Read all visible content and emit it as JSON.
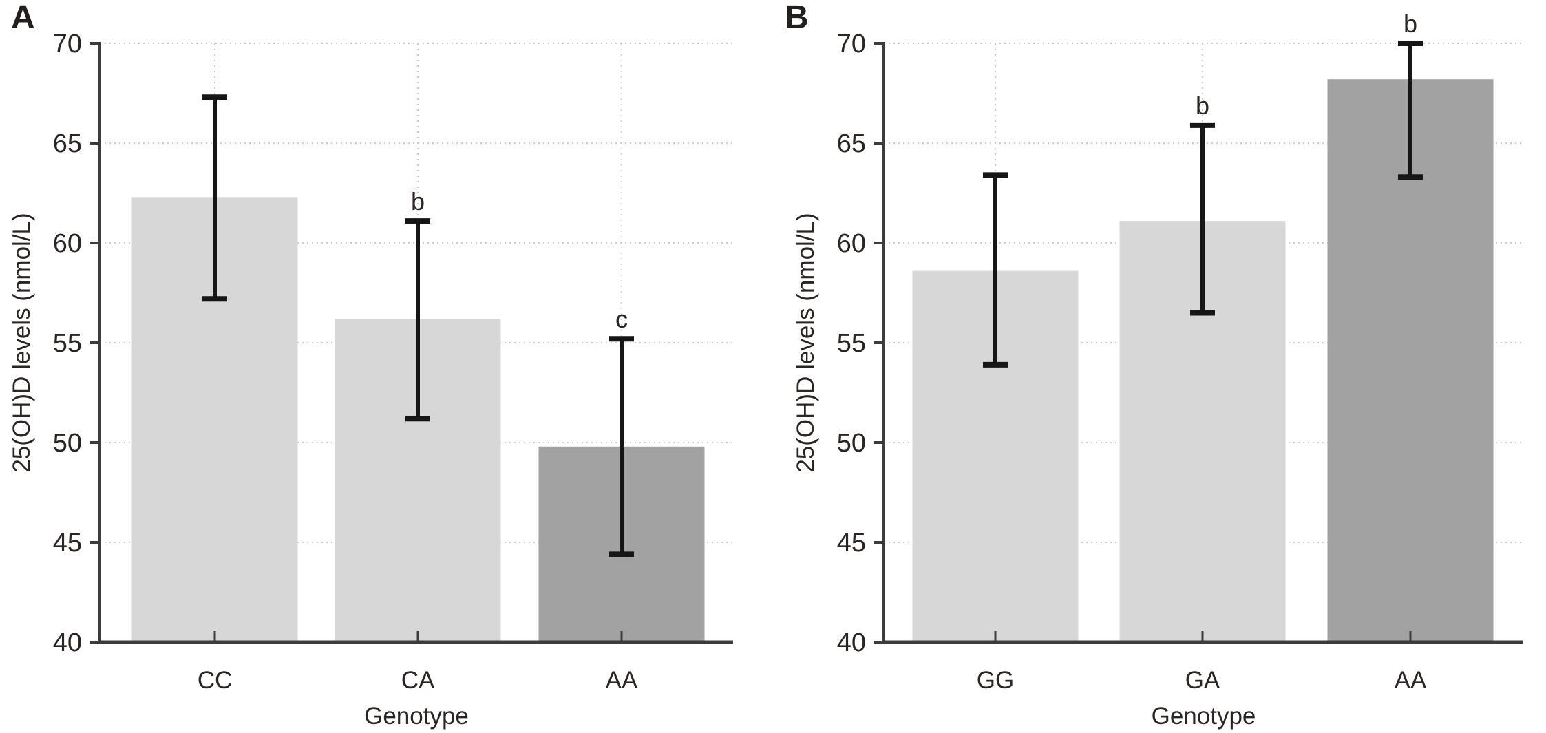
{
  "colors": {
    "background": "#ffffff",
    "axis": "#3c3c3c",
    "grid": "#cccccc",
    "error_bar": "#161616",
    "text": "#2a2522",
    "bar_light": "#d7d7d7",
    "bar_dark": "#a2a2a2"
  },
  "chart_data": [
    {
      "type": "bar",
      "panel_label": "A",
      "title": "",
      "xlabel": "Genotype",
      "ylabel": "25(OH)D levels (nmol/L)",
      "ylim": [
        40,
        70
      ],
      "ytick_step": 5,
      "grid": true,
      "legend_position": "none",
      "categories": [
        "CC",
        "CA",
        "AA"
      ],
      "values": [
        62.3,
        56.2,
        49.8
      ],
      "error_low": [
        57.2,
        51.2,
        44.4
      ],
      "error_high": [
        67.3,
        61.1,
        55.2
      ],
      "sig_labels": [
        "",
        "b",
        "c"
      ],
      "bar_colors": [
        "#d7d7d7",
        "#d7d7d7",
        "#a2a2a2"
      ]
    },
    {
      "type": "bar",
      "panel_label": "B",
      "title": "",
      "xlabel": "Genotype",
      "ylabel": "25(OH)D levels (nmol/L)",
      "ylim": [
        40,
        70
      ],
      "ytick_step": 5,
      "grid": true,
      "legend_position": "none",
      "categories": [
        "GG",
        "GA",
        "AA"
      ],
      "values": [
        58.6,
        61.1,
        68.2
      ],
      "error_low": [
        53.9,
        56.5,
        63.3
      ],
      "error_high": [
        63.4,
        65.9,
        70.0
      ],
      "sig_labels": [
        "",
        "b",
        "b"
      ],
      "bar_colors": [
        "#d7d7d7",
        "#d7d7d7",
        "#a2a2a2"
      ]
    }
  ]
}
